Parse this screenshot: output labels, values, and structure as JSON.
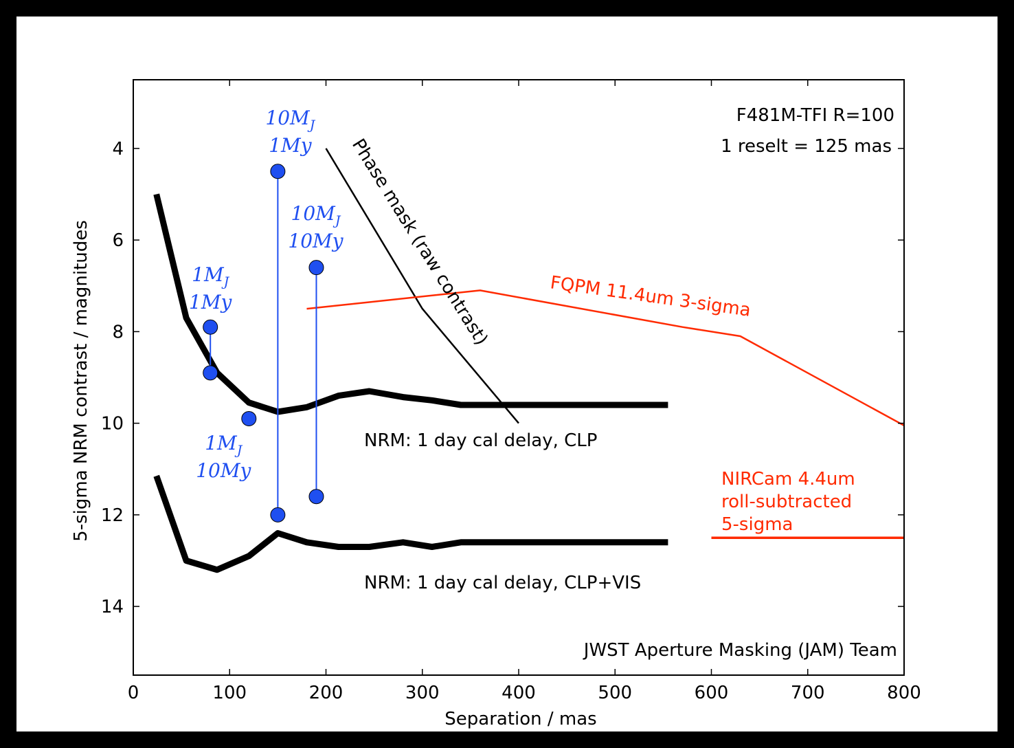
{
  "chart_data": {
    "type": "line",
    "xlabel": "Separation / mas",
    "ylabel": "5-sigma NRM contrast / magnitudes",
    "xlim": [
      0,
      800
    ],
    "ylim": [
      15.5,
      2.5
    ],
    "y_inverted": true,
    "xticks": [
      "0",
      "100",
      "200",
      "300",
      "400",
      "500",
      "600",
      "700",
      "800"
    ],
    "yticks": [
      "4",
      "6",
      "8",
      "10",
      "12",
      "14"
    ],
    "annotations_top_right": [
      "F481M-TFI  R=100",
      "1 reselt = 125 mas"
    ],
    "credit": "JWST Aperture Masking (JAM) Team",
    "series": [
      {
        "name": "NRM: 1 day cal delay, CLP",
        "color": "#000000",
        "points": [
          [
            24,
            5.0
          ],
          [
            55,
            7.7
          ],
          [
            87,
            8.9
          ],
          [
            120,
            9.55
          ],
          [
            150,
            9.75
          ],
          [
            180,
            9.65
          ],
          [
            213,
            9.4
          ],
          [
            245,
            9.3
          ],
          [
            280,
            9.43
          ],
          [
            310,
            9.5
          ],
          [
            340,
            9.6
          ],
          [
            555,
            9.6
          ]
        ]
      },
      {
        "name": "NRM: 1 day cal delay, CLP+VIS",
        "color": "#000000",
        "points": [
          [
            24,
            11.15
          ],
          [
            55,
            13.0
          ],
          [
            87,
            13.2
          ],
          [
            120,
            12.9
          ],
          [
            150,
            12.4
          ],
          [
            180,
            12.6
          ],
          [
            213,
            12.7
          ],
          [
            245,
            12.7
          ],
          [
            280,
            12.6
          ],
          [
            310,
            12.7
          ],
          [
            340,
            12.6
          ],
          [
            555,
            12.6
          ]
        ]
      },
      {
        "name": "Phase mask (raw contrast)",
        "color": "#000000",
        "points": [
          [
            200,
            4.0
          ],
          [
            300,
            7.5
          ],
          [
            400,
            10.0
          ]
        ]
      },
      {
        "name": "FQPM 11.4um 3-sigma",
        "color": "#ff2a00",
        "points": [
          [
            180,
            7.5
          ],
          [
            360,
            7.1
          ],
          [
            570,
            7.9
          ],
          [
            630,
            8.1
          ],
          [
            800,
            10.05
          ]
        ]
      },
      {
        "name": "NIRCam 4.4um roll-subtracted 5-sigma",
        "color": "#ff2a00",
        "points": [
          [
            600,
            12.5
          ],
          [
            800,
            12.5
          ]
        ]
      }
    ],
    "planets": [
      {
        "x": 80,
        "y_top": 7.9,
        "y_bottom": 8.9,
        "label_lines": [
          "1M_J",
          "1My"
        ]
      },
      {
        "x": 120,
        "y": 9.9,
        "label_lines": [
          "1M_J",
          "10My"
        ]
      },
      {
        "x": 150,
        "y_top": 4.5,
        "y_bottom": 12.0,
        "label_lines": [
          "10M_J",
          "1My"
        ]
      },
      {
        "x": 190,
        "y_top": 6.6,
        "y_bottom": 11.6,
        "label_lines": [
          "10M_J",
          "10My"
        ]
      }
    ],
    "planet_color": "#1f4ff0"
  },
  "labels": {
    "phase_mask": "Phase mask (raw contrast)",
    "fqpm": "FQPM 11.4um 3-sigma",
    "nircam": [
      "NIRCam 4.4um",
      "roll-subtracted",
      "5-sigma"
    ],
    "nrm_clp": "NRM: 1 day cal delay, CLP",
    "nrm_clpvis": "NRM: 1 day cal delay, CLP+VIS"
  }
}
